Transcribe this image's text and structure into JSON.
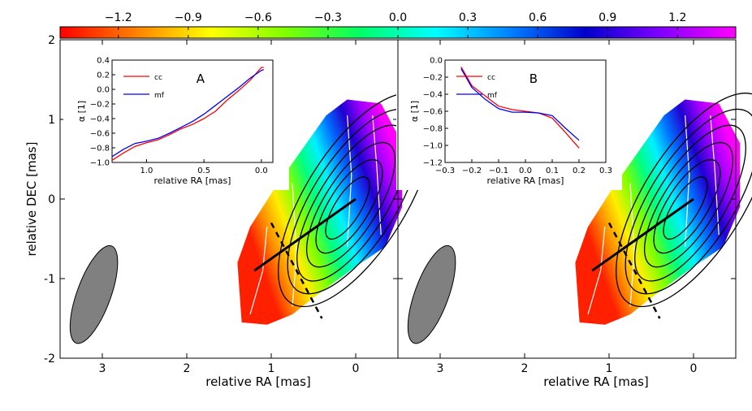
{
  "colorbar": {
    "ticks": [
      "−1.2",
      "−0.9",
      "−0.6",
      "−0.3",
      "0.0",
      "0.3",
      "0.6",
      "0.9",
      "1.2"
    ],
    "tick_values": [
      -1.2,
      -0.9,
      -0.6,
      -0.3,
      0.0,
      0.3,
      0.6,
      0.9,
      1.2
    ],
    "range": [
      -1.45,
      1.45
    ],
    "colormap": [
      "#ff0000",
      "#ff8000",
      "#ffff00",
      "#80ff00",
      "#00ff66",
      "#00ffff",
      "#0080ff",
      "#0000cc",
      "#8000ff",
      "#ff00ff"
    ]
  },
  "chart_data": [
    {
      "type": "heatmap",
      "panel": "left",
      "xlabel": "relative RA [mas]",
      "ylabel": "relative DEC [mas]",
      "xlim": [
        3.5,
        -0.5
      ],
      "ylim": [
        -2,
        2
      ],
      "xticks": [
        3,
        2,
        1,
        0
      ],
      "yticks": [
        2,
        1,
        0,
        -1,
        -2
      ],
      "beam": {
        "ra": 3.1,
        "dec": -1.2,
        "major": 0.72,
        "minor": 0.2,
        "color": "#808080"
      },
      "profile_solid": {
        "start": [
          1.2,
          -0.9
        ],
        "end": [
          0.0,
          0.0
        ]
      },
      "profile_dashed": {
        "start": [
          1.0,
          -0.3
        ],
        "end": [
          0.4,
          -1.5
        ]
      },
      "inset": {
        "label": "A",
        "type": "line",
        "xlabel": "relative RA [mas]",
        "ylabel": "α [1]",
        "xlim": [
          1.3,
          -0.1
        ],
        "ylim": [
          -1.0,
          0.4
        ],
        "xtick_labels": [
          "1.0",
          "0.5",
          "0.0"
        ],
        "xticks": [
          1.0,
          0.5,
          0.0
        ],
        "yticks": [
          -1.0,
          -0.8,
          -0.6,
          -0.4,
          -0.2,
          0.0,
          0.2,
          0.4
        ],
        "ytick_labels": [
          "−1.0",
          "−0.8",
          "−0.6",
          "−0.4",
          "−0.2",
          "0.0",
          "0.2",
          "0.4"
        ],
        "series": [
          {
            "name": "cc",
            "color": "#ff0000",
            "x": [
              1.3,
              1.2,
              1.1,
              1.0,
              0.9,
              0.8,
              0.7,
              0.6,
              0.5,
              0.4,
              0.3,
              0.2,
              0.1,
              0.0,
              -0.02
            ],
            "y": [
              -0.97,
              -0.87,
              -0.78,
              -0.73,
              -0.69,
              -0.62,
              -0.54,
              -0.48,
              -0.4,
              -0.3,
              -0.15,
              -0.02,
              0.12,
              0.3,
              0.3
            ]
          },
          {
            "name": "mf",
            "color": "#0000ff",
            "x": [
              1.3,
              1.2,
              1.1,
              1.0,
              0.9,
              0.8,
              0.7,
              0.6,
              0.5,
              0.4,
              0.3,
              0.2,
              0.1,
              0.0,
              -0.02
            ],
            "y": [
              -0.92,
              -0.82,
              -0.74,
              -0.71,
              -0.67,
              -0.6,
              -0.52,
              -0.44,
              -0.34,
              -0.22,
              -0.1,
              0.02,
              0.15,
              0.26,
              0.27
            ]
          }
        ]
      }
    },
    {
      "type": "heatmap",
      "panel": "right",
      "xlabel": "relative RA [mas]",
      "ylabel": "",
      "xlim": [
        3.5,
        -0.5
      ],
      "ylim": [
        -2,
        2
      ],
      "xticks": [
        3,
        2,
        1,
        0
      ],
      "yticks": [
        2,
        1,
        0,
        -1,
        -2
      ],
      "beam": {
        "ra": 3.1,
        "dec": -1.2,
        "major": 0.72,
        "minor": 0.2,
        "color": "#808080"
      },
      "profile_solid": {
        "start": [
          1.2,
          -0.9
        ],
        "end": [
          0.0,
          0.0
        ]
      },
      "profile_dashed": {
        "start": [
          1.0,
          -0.3
        ],
        "end": [
          0.4,
          -1.5
        ]
      },
      "inset": {
        "label": "B",
        "type": "line",
        "xlabel": "relative RA [mas]",
        "ylabel": "α [1]",
        "xlim": [
          -0.3,
          0.3
        ],
        "ylim": [
          -1.2,
          0.0
        ],
        "xtick_labels": [
          "−0.3",
          "−0.2",
          "−0.1",
          "0.0",
          "0.1",
          "0.2",
          "0.3"
        ],
        "xticks": [
          -0.3,
          -0.2,
          -0.1,
          0.0,
          0.1,
          0.2,
          0.3
        ],
        "yticks": [
          -1.2,
          -1.0,
          -0.8,
          -0.6,
          -0.4,
          -0.2,
          0.0
        ],
        "ytick_labels": [
          "−1.2",
          "−1.0",
          "−0.8",
          "−0.6",
          "−0.4",
          "−0.2",
          "0.0"
        ],
        "series": [
          {
            "name": "cc",
            "color": "#ff0000",
            "x": [
              -0.24,
              -0.2,
              -0.15,
              -0.1,
              -0.05,
              0.0,
              0.05,
              0.1,
              0.15,
              0.2
            ],
            "y": [
              -0.08,
              -0.3,
              -0.42,
              -0.54,
              -0.58,
              -0.6,
              -0.62,
              -0.68,
              -0.85,
              -1.03
            ]
          },
          {
            "name": "mf",
            "color": "#0000ff",
            "x": [
              -0.24,
              -0.2,
              -0.15,
              -0.1,
              -0.05,
              0.0,
              0.05,
              0.1,
              0.15,
              0.2
            ],
            "y": [
              -0.1,
              -0.32,
              -0.46,
              -0.57,
              -0.61,
              -0.61,
              -0.62,
              -0.65,
              -0.8,
              -0.94
            ]
          }
        ]
      }
    }
  ]
}
